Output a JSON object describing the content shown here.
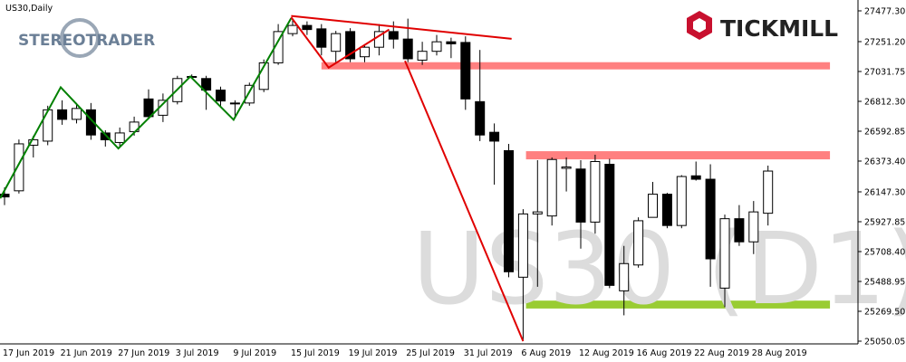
{
  "chart_data": {
    "type": "candlestick",
    "symbol_label": "US30,Daily",
    "watermark": "US30 (D1)",
    "brand_left": "STEREOTRADER",
    "brand_right": "TICKMILL",
    "categories": [
      "17 Jun 2019",
      null,
      null,
      null,
      "21 Jun 2019",
      null,
      null,
      null,
      "27 Jun 2019",
      null,
      null,
      null,
      "3 Jul 2019",
      null,
      null,
      null,
      "9 Jul 2019",
      null,
      null,
      null,
      "15 Jul 2019",
      null,
      null,
      null,
      "19 Jul 2019",
      null,
      null,
      null,
      "25 Jul 2019",
      null,
      null,
      null,
      "31 Jul 2019",
      null,
      null,
      null,
      "6 Aug 2019",
      null,
      null,
      null,
      "12 Aug 2019",
      null,
      null,
      null,
      "16 Aug 2019",
      null,
      null,
      null,
      "22 Aug 2019",
      null,
      null,
      null,
      "28 Aug 2019",
      null
    ],
    "open": [
      26130,
      26155,
      26490,
      26520,
      26750,
      26680,
      26750,
      26580,
      26510,
      26590,
      26830,
      26710,
      26810,
      26990,
      26980,
      26895,
      26800,
      26800,
      26900,
      27095,
      27310,
      27370,
      27345,
      27180,
      27325,
      27140,
      27210,
      27325,
      27270,
      27115,
      27180,
      27250,
      27245,
      26810,
      26585,
      26450,
      25520,
      25985,
      25970,
      26320,
      26315,
      25925,
      26350,
      25420,
      25610,
      25960,
      26130,
      25900,
      26265,
      26240,
      25440,
      25950,
      25780,
      25990
    ],
    "high": [
      26180,
      26532,
      26560,
      26780,
      26820,
      26800,
      26800,
      26600,
      26620,
      26700,
      26900,
      26870,
      27000,
      27010,
      27000,
      26920,
      26820,
      26950,
      27120,
      27380,
      27420,
      27400,
      27380,
      27330,
      27350,
      27230,
      27380,
      27400,
      27420,
      27250,
      27300,
      27280,
      27290,
      27190,
      26650,
      26500,
      26020,
      26380,
      26400,
      26400,
      26380,
      26420,
      26390,
      25750,
      25960,
      26220,
      26140,
      26270,
      26370,
      26350,
      25980,
      26050,
      26080,
      26340
    ],
    "low": [
      26050,
      26135,
      26400,
      26490,
      26640,
      26650,
      26530,
      26480,
      26480,
      26560,
      26680,
      26660,
      26790,
      26980,
      26750,
      26780,
      26700,
      26780,
      26880,
      27080,
      27290,
      27300,
      27150,
      27100,
      27100,
      27100,
      27150,
      27200,
      27100,
      27080,
      27150,
      27130,
      26750,
      26520,
      26200,
      25520,
      25050,
      25450,
      25900,
      26150,
      25730,
      25840,
      25440,
      25240,
      25590,
      25960,
      25880,
      25880,
      26230,
      25450,
      25300,
      25750,
      25690,
      25900
    ],
    "close": [
      26110,
      26500,
      26530,
      26750,
      26680,
      26760,
      26565,
      26530,
      26580,
      26660,
      26700,
      26820,
      26980,
      26995,
      26895,
      26815,
      26795,
      26930,
      27095,
      27325,
      27370,
      27340,
      27210,
      27310,
      27125,
      27210,
      27325,
      27270,
      27125,
      27180,
      27250,
      27235,
      26830,
      26565,
      26520,
      25560,
      25985,
      26000,
      26385,
      26330,
      25925,
      26370,
      25460,
      25620,
      25935,
      26130,
      25900,
      26260,
      26240,
      25655,
      25950,
      25780,
      26000,
      26300
    ],
    "ylim": [
      25030,
      27557
    ],
    "yticks": [
      {
        "value": 27477.3,
        "label": "27477.30"
      },
      {
        "value": 27251.2,
        "label": "27251.20"
      },
      {
        "value": 27031.75,
        "label": "27031.75"
      },
      {
        "value": 26812.3,
        "label": "26812.30"
      },
      {
        "value": 26592.85,
        "label": "26592.85"
      },
      {
        "value": 26373.4,
        "label": "26373.40"
      },
      {
        "value": 26147.3,
        "label": "26147.30"
      },
      {
        "value": 25927.85,
        "label": "25927.85"
      },
      {
        "value": 25708.4,
        "label": "25708.40"
      },
      {
        "value": 25488.95,
        "label": "25488.95"
      },
      {
        "value": 25269.5,
        "label": "25269.50"
      },
      {
        "value": 25050.05,
        "label": "25050.05"
      }
    ],
    "zones": [
      {
        "color": "#ff8080",
        "start": 22,
        "end": 57.3,
        "from": 27047,
        "to": 27100
      },
      {
        "color": "#ff8080",
        "start": 36.2,
        "end": 57.3,
        "from": 26386,
        "to": 26446
      },
      {
        "color": "#99cc33",
        "start": 36.2,
        "end": 57.3,
        "from": 25290,
        "to": 25348
      }
    ],
    "lines": [
      {
        "color": "#008000",
        "points": [
          {
            "x": -0.3,
            "y": 26100
          },
          {
            "x": 3.9,
            "y": 26916
          },
          {
            "x": 7.9,
            "y": 26466
          },
          {
            "x": 12.9,
            "y": 26995
          },
          {
            "x": 15.9,
            "y": 26677
          },
          {
            "x": 19.9,
            "y": 27424
          }
        ]
      },
      {
        "color": "#e00000",
        "points": [
          {
            "x": 19.9,
            "y": 27430
          },
          {
            "x": 22.5,
            "y": 27060
          },
          {
            "x": 26.7,
            "y": 27340
          }
        ]
      },
      {
        "color": "#e00000",
        "points": [
          {
            "x": 19.9,
            "y": 27440
          },
          {
            "x": 35.2,
            "y": 27272
          }
        ]
      },
      {
        "color": "#e00000",
        "points": [
          {
            "x": 27.8,
            "y": 27110
          },
          {
            "x": 36,
            "y": 25050
          }
        ]
      }
    ]
  }
}
